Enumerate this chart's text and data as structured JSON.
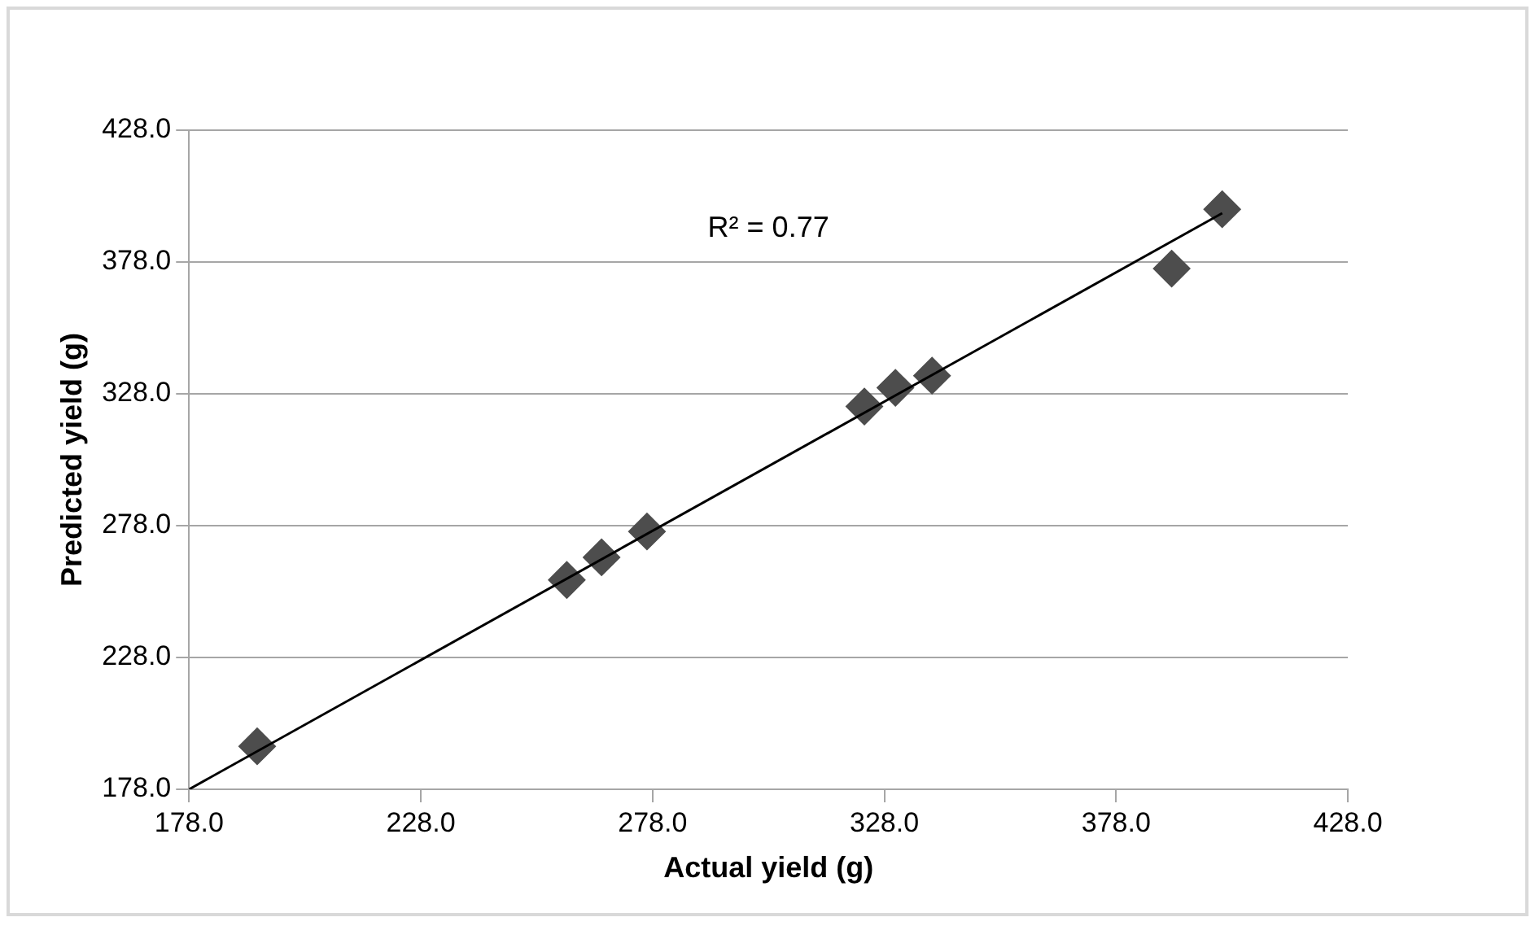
{
  "chart_data": {
    "type": "scatter",
    "xlabel": "Actual yield (g)",
    "ylabel": "Predicted yield (g)",
    "xlim": [
      178,
      428
    ],
    "ylim": [
      178,
      428
    ],
    "xticks": [
      {
        "value": 178,
        "label": "178.0"
      },
      {
        "value": 228,
        "label": "228.0"
      },
      {
        "value": 278,
        "label": "278.0"
      },
      {
        "value": 328,
        "label": "328.0"
      },
      {
        "value": 378,
        "label": "378.0"
      },
      {
        "value": 428,
        "label": "428.0"
      }
    ],
    "yticks": [
      {
        "value": 178,
        "label": "178.0"
      },
      {
        "value": 228,
        "label": "228.0"
      },
      {
        "value": 278,
        "label": "278.0"
      },
      {
        "value": 328,
        "label": "328.0"
      },
      {
        "value": 378,
        "label": "378.0"
      },
      {
        "value": 428,
        "label": "428.0"
      }
    ],
    "grid": "y",
    "legend": false,
    "series": [
      {
        "marker": "diamond",
        "color": "#4d4d4d",
        "x": [
          192.7,
          259.5,
          267.0,
          276.8,
          323.7,
          330.4,
          338.3,
          390.0,
          400.9
        ],
        "values": [
          194.3,
          257.4,
          266.0,
          275.8,
          323.2,
          330.3,
          334.9,
          375.5,
          398.0
        ]
      },
      {
        "type": "line",
        "marker": "none",
        "color": "#000000",
        "x": [
          178,
          400.9
        ],
        "values": [
          178,
          396.5
        ]
      }
    ],
    "annotations": [
      "R² = 0.77"
    ]
  }
}
